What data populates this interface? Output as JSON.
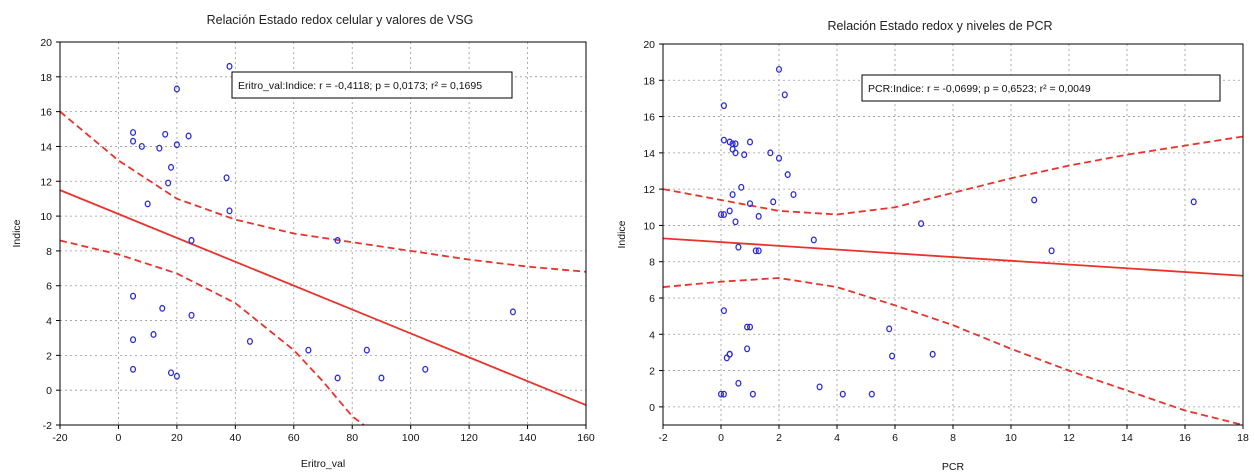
{
  "chart_data": [
    {
      "type": "scatter",
      "title": "Relación Estado redox celular y valores de VSG",
      "xlabel": "Eritro_val",
      "ylabel": "Indice",
      "xlim": [
        -20,
        160
      ],
      "ylim": [
        -2,
        20
      ],
      "xticks": [
        "-20",
        "0",
        "20",
        "40",
        "60",
        "80",
        "100",
        "120",
        "140",
        "160"
      ],
      "yticks": [
        "-2",
        "0",
        "2",
        "4",
        "6",
        "8",
        "10",
        "12",
        "14",
        "16",
        "18",
        "20"
      ],
      "grid": true,
      "legend_position": "top-right",
      "annotation": "Eritro_val:Indice:   r = -0,4118; p = 0,0173; r² = 0,1695",
      "series": [
        {
          "x": [
            5,
            5,
            8,
            10,
            14,
            16,
            17,
            18,
            20,
            20,
            24,
            25,
            37,
            38,
            38,
            75,
            5,
            5,
            5,
            12,
            15,
            18,
            20,
            25,
            45,
            65,
            75,
            85,
            90,
            105,
            135
          ],
          "y": [
            14.8,
            14.3,
            14.0,
            10.7,
            13.9,
            14.7,
            11.9,
            12.8,
            17.3,
            14.1,
            14.6,
            8.6,
            12.2,
            18.6,
            10.3,
            8.6,
            5.4,
            2.9,
            1.2,
            3.2,
            4.7,
            1.0,
            0.8,
            4.3,
            2.8,
            2.3,
            0.7,
            2.3,
            0.7,
            1.2,
            4.5
          ]
        }
      ],
      "regression": {
        "intercept": 10.12,
        "slope": -0.0686
      },
      "confidence_band": {
        "upper": [
          [
            -20,
            16.0
          ],
          [
            0,
            13.2
          ],
          [
            20,
            11.0
          ],
          [
            40,
            9.8
          ],
          [
            60,
            9.0
          ],
          [
            80,
            8.5
          ],
          [
            100,
            8.0
          ],
          [
            120,
            7.5
          ],
          [
            140,
            7.1
          ],
          [
            160,
            6.8
          ]
        ],
        "lower": [
          [
            -20,
            8.6
          ],
          [
            0,
            7.8
          ],
          [
            20,
            6.7
          ],
          [
            40,
            5.0
          ],
          [
            60,
            2.3
          ],
          [
            70,
            0.5
          ],
          [
            80,
            -1.5
          ],
          [
            84,
            -2.0
          ]
        ]
      }
    },
    {
      "type": "scatter",
      "title": "Relación Estado redox y niveles de PCR",
      "xlabel": "PCR",
      "ylabel": "Indice",
      "xlim": [
        -2,
        18
      ],
      "ylim": [
        -1,
        20
      ],
      "xticks": [
        "-2",
        "0",
        "2",
        "4",
        "6",
        "8",
        "10",
        "12",
        "14",
        "16",
        "18"
      ],
      "yticks": [
        "0",
        "2",
        "4",
        "6",
        "8",
        "10",
        "12",
        "14",
        "16",
        "18",
        "20"
      ],
      "grid": true,
      "legend_position": "top-right",
      "annotation": "PCR:Indice:   r = -0,0699; p = 0,6523; r² = 0,0049",
      "series": [
        {
          "x": [
            0.1,
            0.1,
            0.3,
            0.4,
            0.4,
            0.5,
            0.5,
            0.7,
            0.8,
            1.0,
            1.0,
            1.3,
            1.7,
            1.8,
            2.0,
            2.0,
            2.2,
            2.3,
            2.5,
            3.2,
            0.0,
            0.1,
            0.3,
            0.4,
            0.5,
            0.6,
            1.2,
            1.3,
            6.9,
            10.8,
            11.4,
            16.3,
            0.0,
            0.1,
            0.2,
            0.3,
            0.6,
            0.9,
            1.0,
            0.1,
            0.3,
            0.9,
            1.1,
            3.4,
            4.2,
            5.2,
            5.8,
            5.9,
            7.3
          ],
          "y": [
            16.6,
            14.7,
            14.6,
            14.5,
            14.2,
            14.0,
            14.5,
            12.1,
            13.9,
            14.6,
            11.2,
            10.5,
            14.0,
            11.3,
            13.7,
            18.6,
            17.2,
            12.8,
            11.7,
            9.2,
            10.6,
            10.6,
            10.8,
            11.7,
            10.2,
            8.8,
            8.6,
            8.6,
            10.1,
            11.4,
            8.6,
            11.3,
            0.7,
            5.3,
            2.7,
            2.9,
            1.3,
            3.2,
            4.4,
            0.7,
            2.9,
            4.4,
            0.7,
            1.1,
            0.7,
            0.7,
            4.3,
            2.8,
            2.9
          ]
        }
      ],
      "regression": {
        "intercept": 9.08,
        "slope": -0.103
      },
      "confidence_band": {
        "upper": [
          [
            -2,
            12.0
          ],
          [
            0,
            11.4
          ],
          [
            2,
            10.8
          ],
          [
            4,
            10.6
          ],
          [
            6,
            11.0
          ],
          [
            8,
            11.8
          ],
          [
            10,
            12.6
          ],
          [
            12,
            13.3
          ],
          [
            14,
            13.9
          ],
          [
            16,
            14.4
          ],
          [
            18,
            14.9
          ]
        ],
        "lower": [
          [
            -2,
            6.6
          ],
          [
            0,
            6.9
          ],
          [
            2,
            7.1
          ],
          [
            4,
            6.6
          ],
          [
            6,
            5.6
          ],
          [
            8,
            4.5
          ],
          [
            10,
            3.2
          ],
          [
            12,
            2.0
          ],
          [
            14,
            0.9
          ],
          [
            16,
            -0.2
          ],
          [
            18,
            -1.0
          ]
        ]
      }
    }
  ]
}
